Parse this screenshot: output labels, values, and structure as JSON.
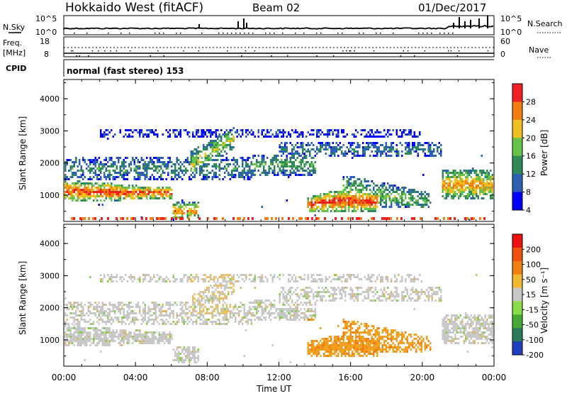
{
  "header": {
    "title": "Hokkaido West (fitACF)",
    "beam": "Beam 02",
    "date": "01/Dec/2017"
  },
  "status_panel": {
    "nsky_label": "N.Sky",
    "nsearch_label": "N.Search",
    "nsky_ticks": [
      "10^5",
      "10^0"
    ],
    "nsearch_ticks": [
      "10^5",
      "10^0"
    ],
    "freq_label": "Freq.",
    "freq_unit": "[MHz]",
    "freq_ticks": [
      "18",
      "8"
    ],
    "nave_label": "Nave",
    "nave_ticks": [
      "60",
      "0"
    ],
    "cpid_label": "CPID",
    "cpid_text": "normal (fast stereo) 153"
  },
  "chart_data": [
    {
      "type": "heatmap",
      "name": "power",
      "ylabel": "Slant Range [km]",
      "yticks": [
        "1000",
        "2000",
        "3000",
        "4000"
      ],
      "ylim": [
        180,
        4600
      ],
      "xlim_hours": [
        0,
        24
      ],
      "colorbar_label": "Power [dB]",
      "colorbar_ticks": [
        "4",
        "8",
        "12",
        "16",
        "20",
        "24",
        "28"
      ],
      "colors": [
        "#0000ff",
        "#2a5fb5",
        "#2e8b57",
        "#66c24a",
        "#f0c020",
        "#f07f10",
        "#ee2020"
      ]
    },
    {
      "type": "heatmap",
      "name": "velocity",
      "ylabel": "Slant Range [km]",
      "yticks": [
        "1000",
        "2000",
        "3000",
        "4000"
      ],
      "ylim": [
        180,
        4600
      ],
      "xlim_hours": [
        0,
        24
      ],
      "colorbar_label": "Velocity [m s⁻¹]",
      "colorbar_ticks": [
        "200",
        "100",
        "50",
        "15",
        "-15",
        "-50",
        "-100",
        "-200"
      ],
      "colors": [
        "#1f3fbf",
        "#2a7a5a",
        "#44aa33",
        "#88dd44",
        "#c8c8c8",
        "#f2b830",
        "#f08010",
        "#f05010",
        "#ee1010"
      ]
    }
  ],
  "x_axis": {
    "label": "Time UT",
    "ticks": [
      "00:00",
      "04:00",
      "08:00",
      "12:00",
      "16:00",
      "20:00",
      "00:00"
    ]
  }
}
